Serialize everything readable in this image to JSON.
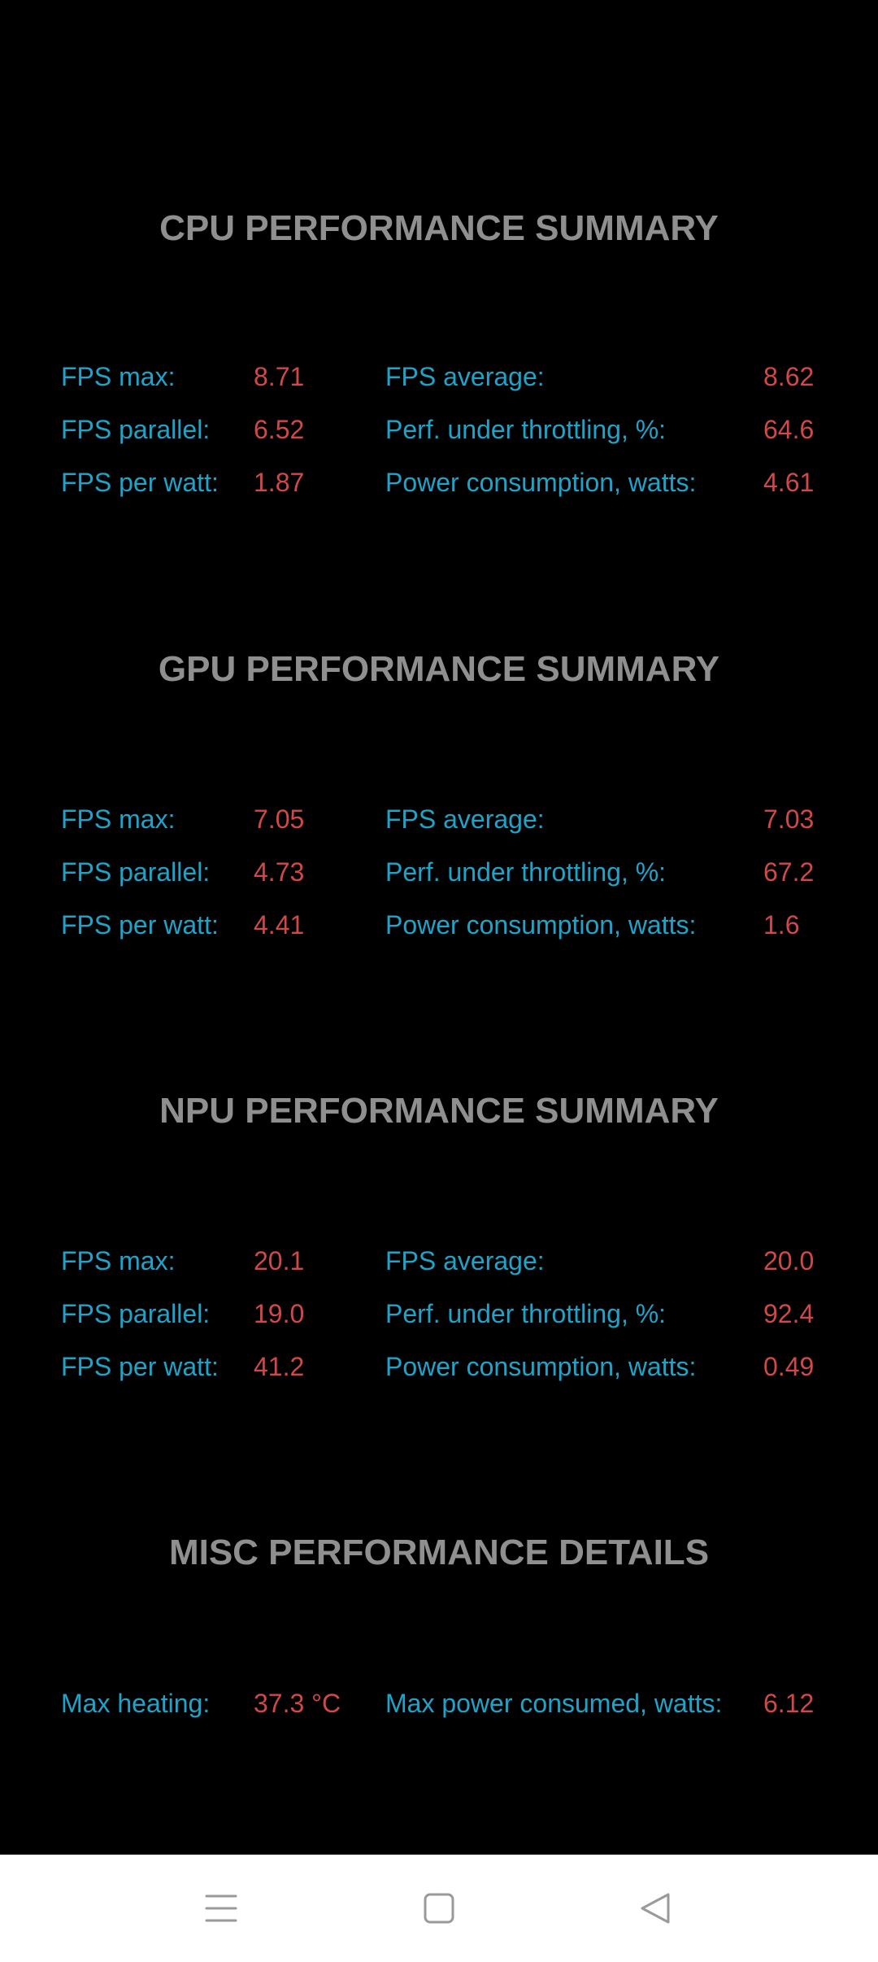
{
  "sections": [
    {
      "title": "CPU PERFORMANCE SUMMARY",
      "rows": [
        {
          "l1": "FPS max:",
          "v1": "8.71",
          "l2": "FPS average:",
          "v2": "8.62"
        },
        {
          "l1": "FPS parallel:",
          "v1": "6.52",
          "l2": "Perf. under throttling, %:",
          "v2": "64.6"
        },
        {
          "l1": "FPS per watt:",
          "v1": "1.87",
          "l2": "Power consumption, watts:",
          "v2": "4.61"
        }
      ]
    },
    {
      "title": "GPU PERFORMANCE SUMMARY",
      "rows": [
        {
          "l1": "FPS max:",
          "v1": "7.05",
          "l2": "FPS average:",
          "v2": "7.03"
        },
        {
          "l1": "FPS parallel:",
          "v1": "4.73",
          "l2": "Perf. under throttling, %:",
          "v2": "67.2"
        },
        {
          "l1": "FPS per watt:",
          "v1": "4.41",
          "l2": "Power consumption, watts:",
          "v2": "1.6"
        }
      ]
    },
    {
      "title": "NPU PERFORMANCE SUMMARY",
      "rows": [
        {
          "l1": "FPS max:",
          "v1": "20.1",
          "l2": "FPS average:",
          "v2": "20.0"
        },
        {
          "l1": "FPS parallel:",
          "v1": "19.0",
          "l2": "Perf. under throttling, %:",
          "v2": "92.4"
        },
        {
          "l1": "FPS per watt:",
          "v1": "41.2",
          "l2": "Power consumption, watts:",
          "v2": "0.49"
        }
      ]
    },
    {
      "title": "MISC PERFORMANCE DETAILS",
      "rows": [
        {
          "l1": "Max heating:",
          "v1": "37.3 °C",
          "l2": "Max power consumed, watts:",
          "v2": "6.12"
        }
      ]
    }
  ],
  "colors": {
    "background": "#000000",
    "title": "#8f8f8f",
    "label": "#1fa3c9",
    "value": "#d04848",
    "navbar": "#ffffff",
    "nav_icon": "#9a9a9a"
  },
  "navbar": {
    "buttons": [
      "menu-icon",
      "home-square-icon",
      "back-triangle-icon"
    ]
  }
}
